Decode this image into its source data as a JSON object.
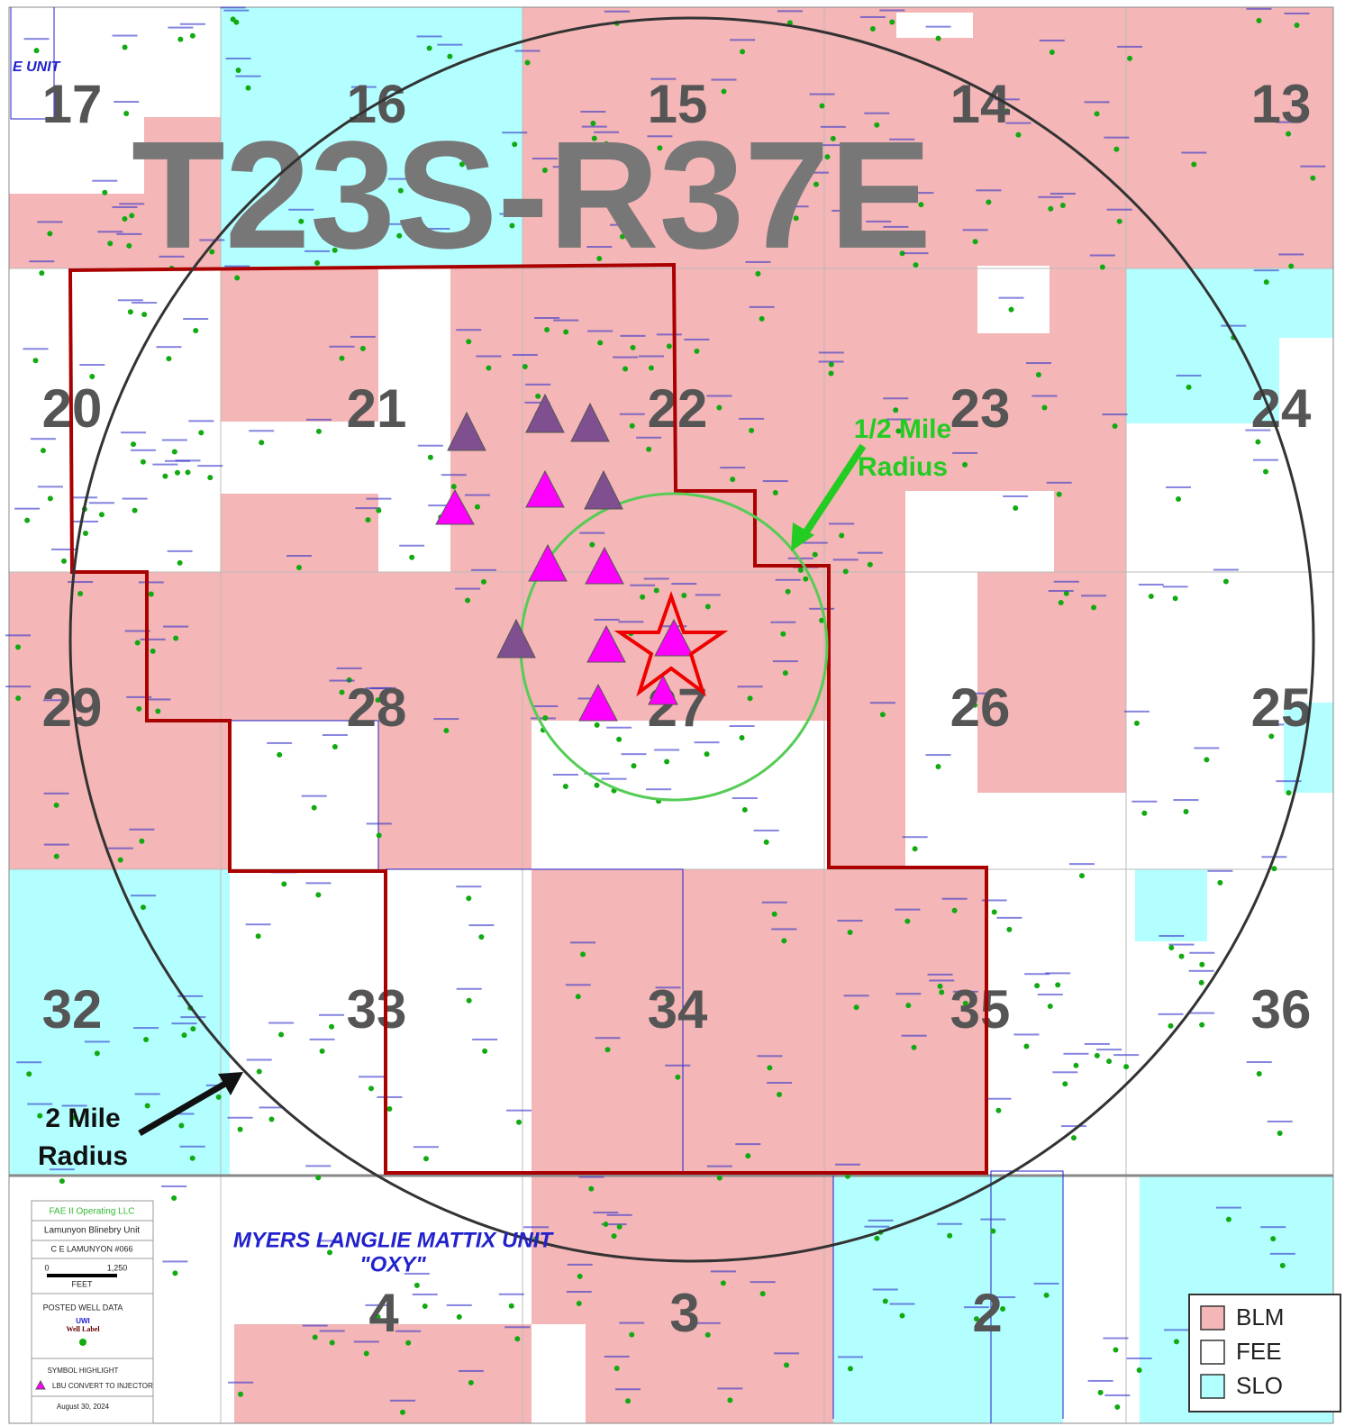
{
  "map": {
    "title": "T23S-R37E",
    "unit_label": "E UNIT",
    "sections": [
      [
        "17",
        "16",
        "15",
        "14",
        "13"
      ],
      [
        "20",
        "21",
        "22",
        "23",
        "24"
      ],
      [
        "29",
        "28",
        "27",
        "26",
        "25"
      ],
      [
        "32",
        "33",
        "34",
        "35",
        "36"
      ],
      [
        "4",
        "3",
        "2"
      ]
    ],
    "half_mile": {
      "line1": "1/2 Mile",
      "line2": "Radius"
    },
    "two_mile": {
      "line1": "2 Mile",
      "line2": "Radius"
    },
    "unit_name": {
      "line1": "MYERS LANGLIE MATTIX UNIT",
      "line2": "\"OXY\""
    }
  },
  "info_box": {
    "operator": "FAE II Operating LLC",
    "unit": "Lamunyon Blinebry Unit",
    "well": "C E LAMUNYON #066",
    "scale_start": "0",
    "scale_end": "1,250",
    "scale_unit": "FEET",
    "posted": "POSTED WELL DATA",
    "uwi": "UWI",
    "well_label": "Well Label",
    "symbol": "SYMBOL HIGHLIGHT",
    "symbol_desc": "LBU CONVERT TO INJECTOR",
    "date": "August 30, 2024"
  },
  "legend": [
    {
      "name": "BLM",
      "color": "#f4b6b6"
    },
    {
      "name": "FEE",
      "color": "#ffffff"
    },
    {
      "name": "SLO",
      "color": "#b3ffff"
    }
  ]
}
